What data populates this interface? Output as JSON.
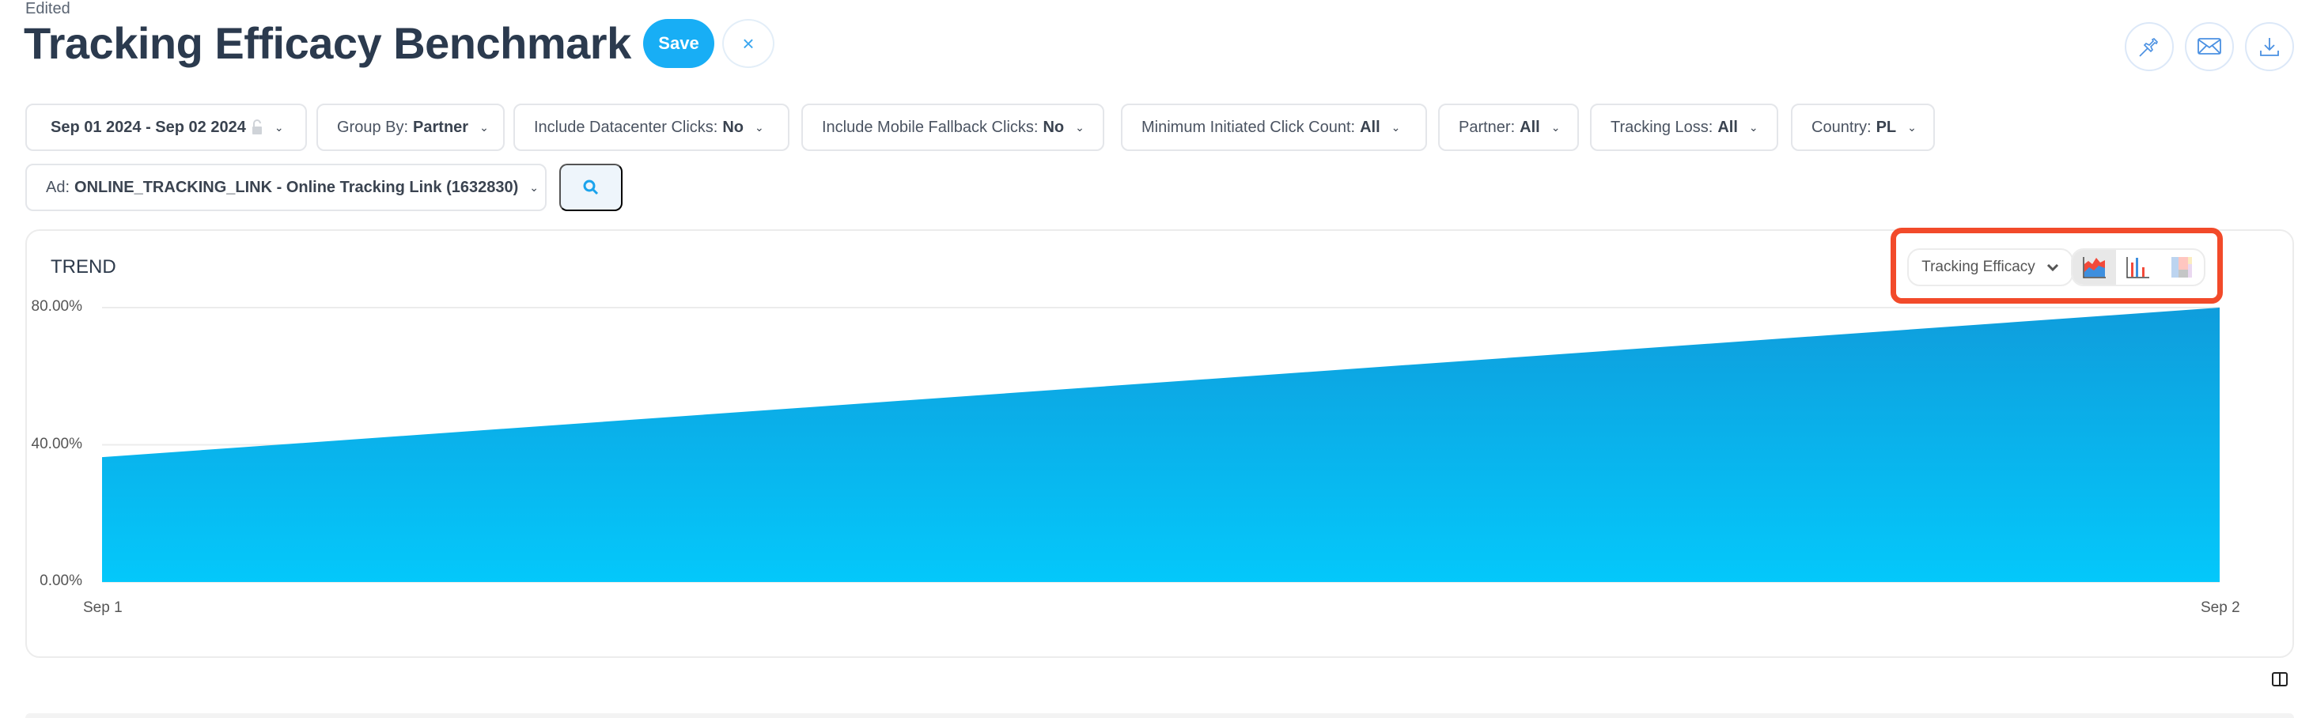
{
  "header": {
    "status": "Edited",
    "title": "Tracking Efficacy Benchmark",
    "save_label": "Save",
    "cancel_icon": "close-icon",
    "actions": [
      {
        "name": "pin",
        "icon": "pin-icon"
      },
      {
        "name": "email",
        "icon": "envelope-icon"
      },
      {
        "name": "download",
        "icon": "download-icon"
      }
    ]
  },
  "filters": [
    {
      "label": "",
      "value": "Sep 01 2024 - Sep 02 2024",
      "icon": "unlock-icon"
    },
    {
      "label": "Group By: ",
      "value": "Partner"
    },
    {
      "label": "Include Datacenter Clicks: ",
      "value": "No"
    },
    {
      "label": "Include Mobile Fallback Clicks: ",
      "value": "No"
    },
    {
      "label": "Minimum Initiated Click Count: ",
      "value": "All"
    },
    {
      "label": "Partner: ",
      "value": "All"
    },
    {
      "label": "Tracking Loss: ",
      "value": "All"
    },
    {
      "label": "Country: ",
      "value": "PL"
    },
    {
      "label": "Ad: ",
      "value": "ONLINE_TRACKING_LINK - Online Tracking Link (1632830)"
    }
  ],
  "trend": {
    "title": "TREND",
    "metric": "Tracking Efficacy",
    "chart_types": [
      "area",
      "bar",
      "heatmap"
    ],
    "selected_type": "area",
    "highlight_color": "#f24a2a"
  },
  "chart_data": {
    "type": "area",
    "x": [
      "Sep 1",
      "Sep 2"
    ],
    "values": [
      36.4,
      80.0
    ],
    "unit": "%",
    "yticks": [
      "0.00%",
      "40.00%",
      "80.00%"
    ],
    "ylim": [
      0,
      80
    ],
    "grid": true,
    "colors": {
      "top": "#0f9ddc",
      "bottom": "#04c8fb"
    }
  }
}
